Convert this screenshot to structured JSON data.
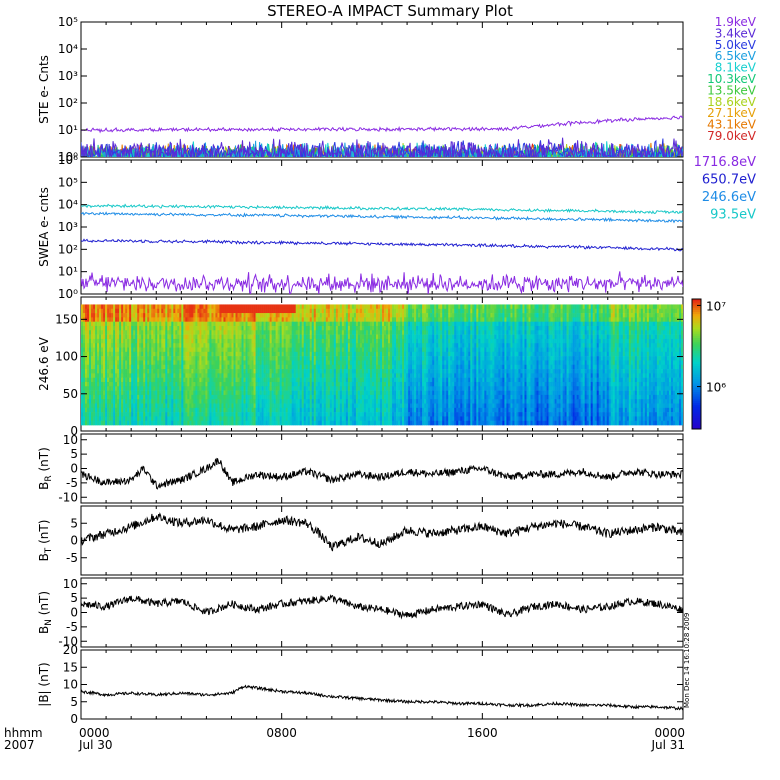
{
  "title": "STEREO-A IMPACT Summary Plot",
  "time_axis": {
    "row1_labels": [
      "0000",
      "0800",
      "1600",
      "0000"
    ],
    "row2_labels": [
      "Jul 30",
      "",
      "",
      "Jul 31"
    ],
    "corner_top": "hhmm",
    "corner_bottom": "2007"
  },
  "side_stamp": "Mon Dec 14 16:10:28 2009",
  "colors": {
    "ste_legend": [
      "#8a2be2",
      "#5b2bd6",
      "#2a3be0",
      "#1ca0e0",
      "#18d0d0",
      "#14c878",
      "#3cc83c",
      "#aad21e",
      "#e6a00a",
      "#e67800",
      "#d22828"
    ],
    "swea_legend": [
      "#8a2be2",
      "#2020d0",
      "#1e8ce6",
      "#18c8c8"
    ]
  },
  "chart_data": [
    {
      "type": "line",
      "panel": "ste",
      "ylabel": "STE e- Cnts",
      "yscale": "log",
      "ylim": [
        1,
        100000
      ],
      "ytick_labels": [
        "10⁰",
        "10¹",
        "10²",
        "10³",
        "10⁴",
        "10⁵"
      ],
      "xlim": [
        0,
        24
      ],
      "grid": false,
      "legend_position": "right",
      "series": [
        {
          "name": "1.9keV",
          "color": "#8a2be2",
          "level_start": 10,
          "level_mid": 11,
          "level_end": 30
        },
        {
          "name": "3.4keV",
          "color": "#5b2bd6",
          "level": 1.6
        },
        {
          "name": "5.0keV",
          "color": "#2a3be0",
          "level": 1.4
        },
        {
          "name": "6.5keV",
          "color": "#1ca0e0",
          "level": 1.2
        },
        {
          "name": "8.1keV",
          "color": "#18d0d0",
          "level": 1.1
        },
        {
          "name": "10.3keV",
          "color": "#14c878",
          "level": 1.0
        },
        {
          "name": "13.5keV",
          "color": "#3cc83c",
          "level": 1.0
        },
        {
          "name": "18.6keV",
          "color": "#aad21e",
          "level": 1.0
        },
        {
          "name": "27.1keV",
          "color": "#e6a00a",
          "level": 1.0
        },
        {
          "name": "43.1keV",
          "color": "#e67800",
          "level": 1.0
        },
        {
          "name": "79.0keV",
          "color": "#d22828",
          "level": 1.0
        }
      ]
    },
    {
      "type": "line",
      "panel": "swea",
      "ylabel": "SWEA e- cnts",
      "yscale": "log",
      "ylim": [
        1,
        1000000
      ],
      "ytick_labels": [
        "10⁰",
        "10¹",
        "10²",
        "10³",
        "10⁴",
        "10⁵",
        "10⁶"
      ],
      "xlim": [
        0,
        24
      ],
      "grid": false,
      "legend_position": "right",
      "series": [
        {
          "name": "1716.8eV",
          "color": "#8a2be2",
          "level": 3
        },
        {
          "name": "650.7eV",
          "color": "#2020d0",
          "level_start": 250,
          "level_end": 100
        },
        {
          "name": "246.6eV",
          "color": "#1e8ce6",
          "level_start": 4000,
          "level_end": 1800
        },
        {
          "name": "93.5eV",
          "color": "#18c8c8",
          "level_start": 9000,
          "level_end": 4500
        }
      ]
    },
    {
      "type": "heatmap",
      "panel": "pad",
      "ylabel": "246.6 eV",
      "ylim": [
        0,
        180
      ],
      "ytick_labels": [
        "0",
        "50",
        "100",
        "150"
      ],
      "xlim": [
        0,
        24
      ],
      "colorbar": {
        "scale": "log",
        "range": [
          300000,
          12000000
        ],
        "tick_labels": [
          "10⁶",
          "10⁷"
        ]
      }
    },
    {
      "type": "line",
      "panel": "br",
      "ylabel": "B",
      "ylabel_sub": "R",
      "ylabel_unit": "(nT)",
      "ylim": [
        -12,
        12
      ],
      "ytick_labels": [
        "-10",
        "-5",
        "0",
        "5",
        "10"
      ],
      "xlim": [
        0,
        24
      ],
      "series": [
        {
          "x": [
            0,
            1,
            2,
            2.5,
            3,
            4,
            5,
            5.5,
            6,
            7,
            8,
            9,
            10,
            11,
            12,
            13,
            14,
            15,
            16,
            17,
            18,
            19,
            20,
            21,
            22,
            23,
            24
          ],
          "y": [
            -2,
            -5,
            -4,
            0,
            -6,
            -4,
            0,
            3,
            -5,
            -2,
            -3,
            -1,
            -4,
            -2,
            -3,
            -1,
            -2,
            -1,
            0,
            -3,
            -2,
            -2,
            -1,
            -3,
            -1,
            -2,
            -2
          ]
        }
      ]
    },
    {
      "type": "line",
      "panel": "bt",
      "ylabel": "B",
      "ylabel_sub": "T",
      "ylabel_unit": "(nT)",
      "ylim": [
        -10,
        10
      ],
      "ytick_labels": [
        "-5",
        "0",
        "5"
      ],
      "xlim": [
        0,
        24
      ],
      "series": [
        {
          "x": [
            0,
            1,
            2,
            3,
            4,
            5,
            6,
            7,
            8,
            9,
            9.5,
            10,
            11,
            12,
            13,
            14,
            15,
            16,
            17,
            18,
            19,
            20,
            21,
            22,
            23,
            24
          ],
          "y": [
            0,
            2,
            4,
            7,
            5,
            6,
            3,
            4,
            6,
            5,
            2,
            -2,
            1,
            -1,
            3,
            2,
            3,
            4,
            2,
            4,
            5,
            4,
            2,
            3,
            4,
            2
          ]
        }
      ]
    },
    {
      "type": "line",
      "panel": "bn",
      "ylabel": "B",
      "ylabel_sub": "N",
      "ylabel_unit": "(nT)",
      "ylim": [
        -12,
        12
      ],
      "ytick_labels": [
        "-10",
        "-5",
        "0",
        "5",
        "10"
      ],
      "xlim": [
        0,
        24
      ],
      "series": [
        {
          "x": [
            0,
            1,
            2,
            3,
            4,
            5,
            6,
            7,
            8,
            9,
            10,
            11,
            12,
            13,
            14,
            15,
            16,
            17,
            18,
            19,
            20,
            21,
            22,
            23,
            24
          ],
          "y": [
            3,
            2,
            5,
            3,
            4,
            0,
            3,
            1,
            3,
            4,
            5,
            2,
            1,
            -1,
            1,
            2,
            3,
            -1,
            2,
            3,
            1,
            2,
            4,
            3,
            1
          ]
        }
      ]
    },
    {
      "type": "line",
      "panel": "bmag",
      "ylabel": "|B|",
      "ylabel_unit": "(nT)",
      "ylim": [
        0,
        20
      ],
      "ytick_labels": [
        "0",
        "5",
        "10",
        "15",
        "20"
      ],
      "xlim": [
        0,
        24
      ],
      "series": [
        {
          "x": [
            0,
            1,
            2,
            3,
            4,
            5,
            6,
            6.5,
            7,
            8,
            9,
            10,
            11,
            12,
            13,
            14,
            15,
            16,
            17,
            18,
            19,
            20,
            21,
            22,
            23,
            24
          ],
          "y": [
            8,
            7,
            7.5,
            7,
            7.5,
            7,
            7.5,
            9.5,
            9,
            8,
            7.5,
            6.5,
            6,
            5.5,
            5,
            5,
            4.5,
            4.5,
            4,
            4,
            4.5,
            4,
            4,
            3.5,
            3.5,
            3
          ]
        }
      ]
    }
  ]
}
